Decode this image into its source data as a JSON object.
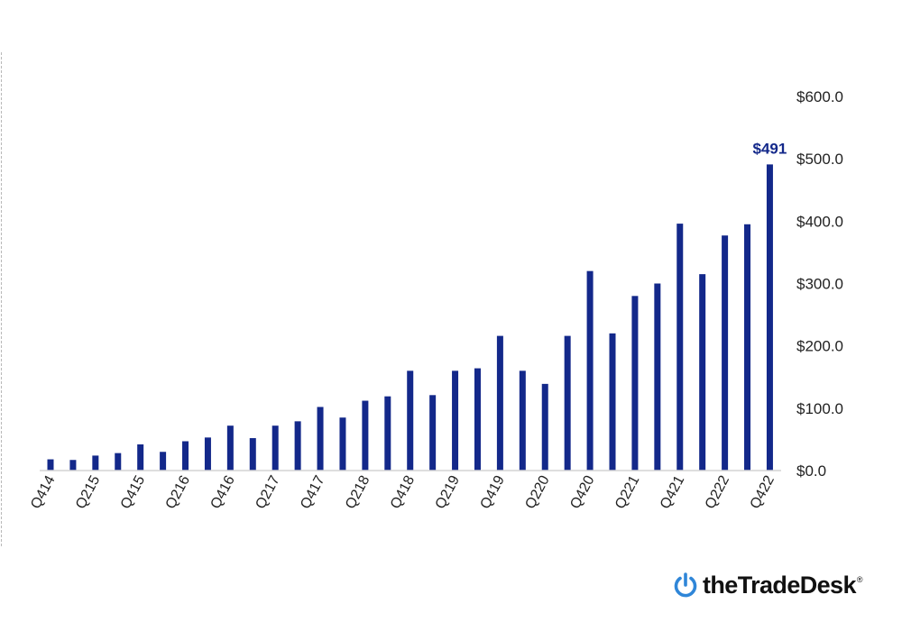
{
  "colors": {
    "bar": "#13288a",
    "label": "#13288a",
    "axis": "#d4d4d4",
    "logo_blue": "#2f86d8"
  },
  "chart_data": {
    "type": "bar",
    "categories": [
      "Q414",
      "Q115",
      "Q215",
      "Q315",
      "Q415",
      "Q116",
      "Q216",
      "Q316",
      "Q416",
      "Q117",
      "Q217",
      "Q317",
      "Q417",
      "Q118",
      "Q218",
      "Q318",
      "Q418",
      "Q119",
      "Q219",
      "Q319",
      "Q419",
      "Q120",
      "Q220",
      "Q320",
      "Q420",
      "Q121",
      "Q221",
      "Q321",
      "Q421",
      "Q122",
      "Q222",
      "Q322",
      "Q422"
    ],
    "tick_labels": [
      "Q414",
      "Q215",
      "Q415",
      "Q216",
      "Q416",
      "Q217",
      "Q417",
      "Q218",
      "Q418",
      "Q219",
      "Q419",
      "Q220",
      "Q420",
      "Q221",
      "Q421",
      "Q222",
      "Q422"
    ],
    "values": [
      18,
      17,
      24,
      28,
      42,
      30,
      47,
      53,
      72,
      52,
      72,
      79,
      102,
      85,
      112,
      119,
      160,
      121,
      160,
      164,
      216,
      160,
      139,
      216,
      320,
      220,
      280,
      300,
      396,
      315,
      377,
      395,
      491
    ],
    "ylim": [
      0,
      600
    ],
    "yticks": [
      "$0.0",
      "$100.0",
      "$200.0",
      "$300.0",
      "$400.0",
      "$500.0",
      "$600.0"
    ],
    "y_axis_position": "right",
    "grid": false,
    "data_labels": [
      {
        "index": 32,
        "text": "$491"
      }
    ]
  },
  "logo": {
    "text": "theTradeDesk",
    "reg": "®",
    "icon": "power-icon"
  }
}
